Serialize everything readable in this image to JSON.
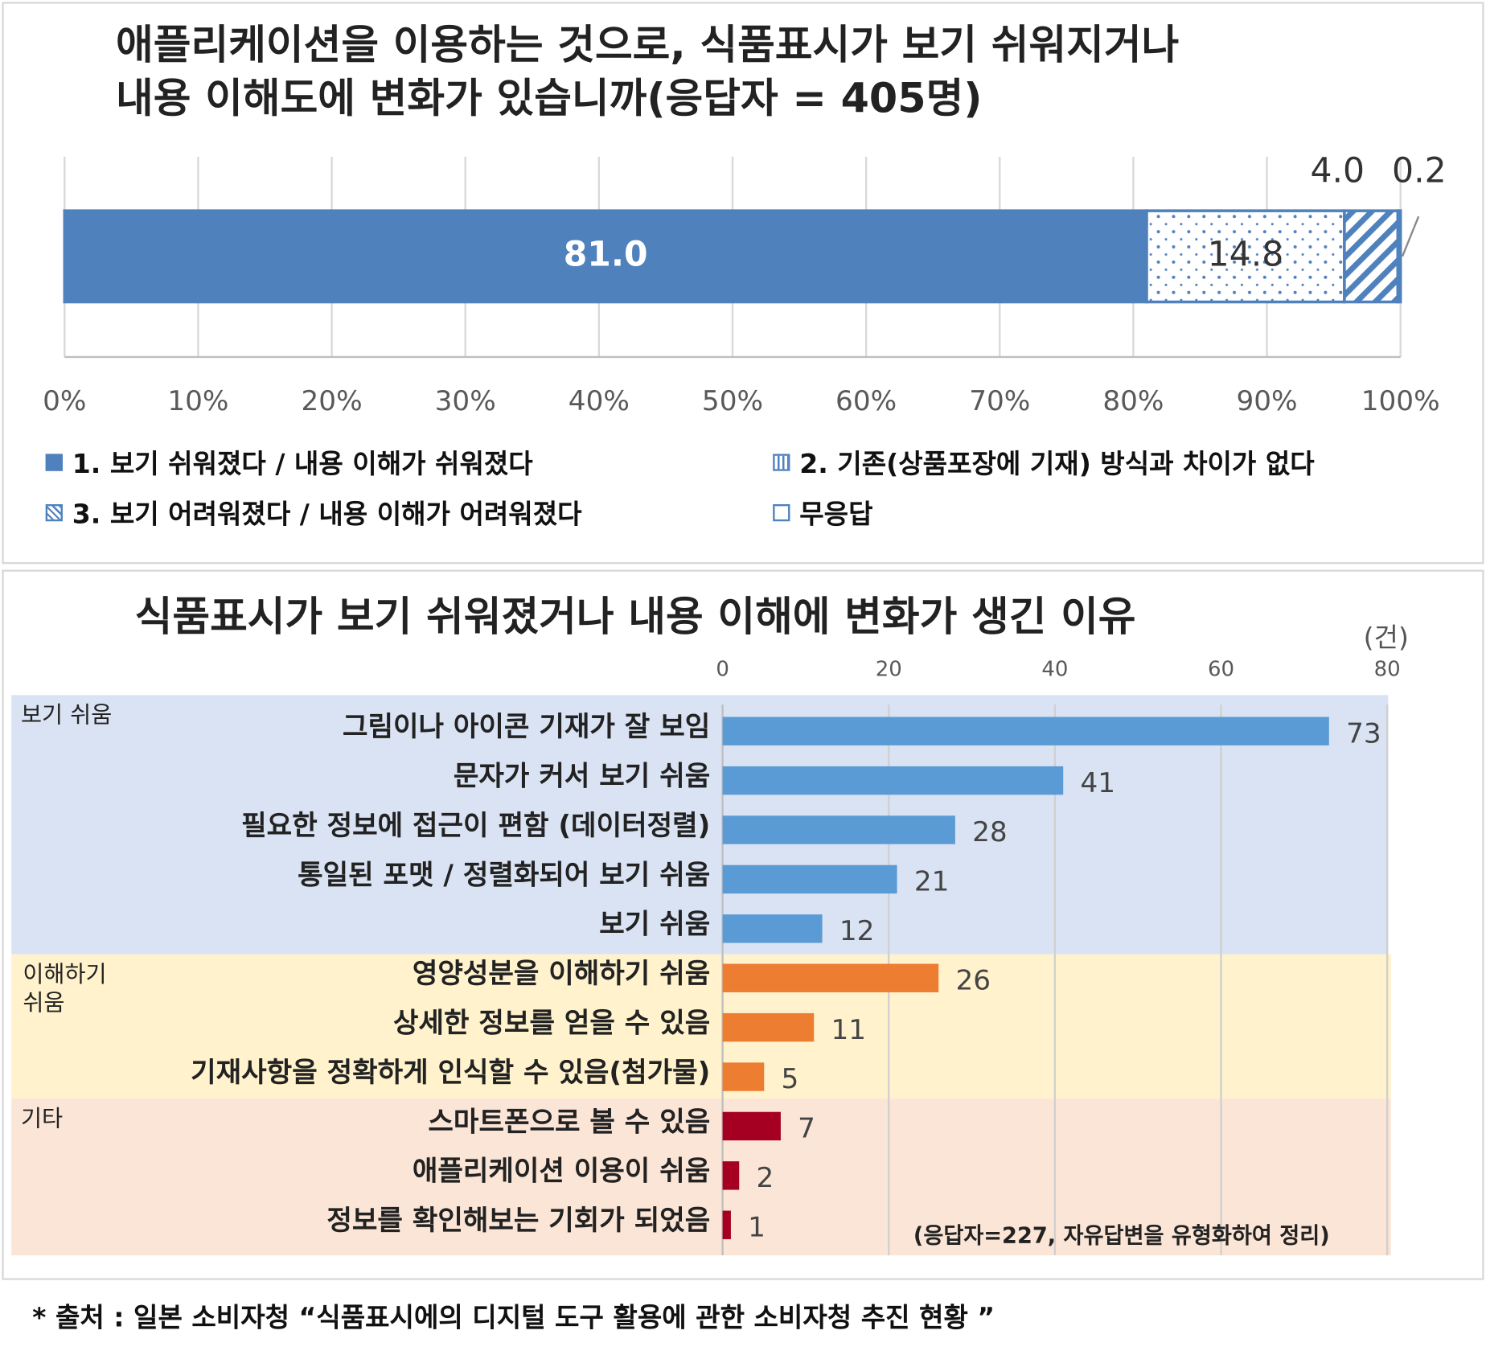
{
  "chart_data": [
    {
      "type": "bar",
      "orientation": "horizontal-stacked-100",
      "title": "애플리케이션을 이용하는 것으로, 식품표시가 보기 쉬워지거나 내용 이해도에 변화가 있습니까(응답자 = 405명)",
      "title_lines": [
        "애플리케이션을 이용하는 것으로, 식품표시가 보기 쉬워지거나",
        "내용 이해도에 변화가 있습니까(응답자 = 405명)"
      ],
      "series": [
        {
          "name": "1. 보기 쉬워졌다 / 내용 이해가 쉬워졌다",
          "value": 81.0,
          "label": "81.0",
          "color": "#4f81bd",
          "pattern": "solid"
        },
        {
          "name": "2. 기존(상품포장에 기재) 방식과 차이가 없다",
          "value": 14.8,
          "label": "14.8",
          "color": "#4f81bd",
          "pattern": "dots"
        },
        {
          "name": "3. 보기 어려워졌다 / 내용 이해가 어려워졌다",
          "value": 4.0,
          "label": "4.0",
          "color": "#4f81bd",
          "pattern": "hatch"
        },
        {
          "name": "무응답",
          "value": 0.2,
          "label": "0.2",
          "color": "#4f81bd",
          "pattern": "empty"
        }
      ],
      "xlim": [
        0,
        100
      ],
      "xticks": [
        "0%",
        "10%",
        "20%",
        "30%",
        "40%",
        "50%",
        "60%",
        "70%",
        "80%",
        "90%",
        "100%"
      ],
      "grid": true,
      "legend": "bottom"
    },
    {
      "type": "bar",
      "orientation": "horizontal",
      "title": "식품표시가 보기 쉬워졌거나 내용 이해에 변화가 생긴 이유",
      "unit": "(건)",
      "xlim": [
        0,
        80
      ],
      "xticks": [
        "0",
        "20",
        "40",
        "60",
        "80"
      ],
      "note": "(응답자=227, 자유답변을 유형화하여 정리)",
      "groups": [
        {
          "name": "보기 쉬움",
          "lines": [
            "보기 쉬움"
          ],
          "bg": "#dae3f3",
          "bar": "#5b9bd5",
          "items": [
            {
              "label": "그림이나 아이콘 기재가 잘 보임",
              "value": 73
            },
            {
              "label": "문자가 커서 보기 쉬움",
              "value": 41
            },
            {
              "label": "필요한 정보에 접근이 편함 (데이터정렬)",
              "value": 28
            },
            {
              "label": "통일된 포맷 / 정렬화되어 보기 쉬움",
              "value": 21
            },
            {
              "label": "보기 쉬움",
              "value": 12
            }
          ]
        },
        {
          "name": "이해하기 쉬움",
          "lines": [
            "이해하기",
            "쉬움"
          ],
          "bg": "#fff2cc",
          "bar": "#ed7d31",
          "items": [
            {
              "label": "영양성분을 이해하기 쉬움",
              "value": 26
            },
            {
              "label": "상세한 정보를 얻을 수 있음",
              "value": 11
            },
            {
              "label": "기재사항을 정확하게 인식할 수 있음(첨가물)",
              "value": 5
            }
          ]
        },
        {
          "name": "기타",
          "lines": [
            "기타"
          ],
          "bg": "#fbe5d6",
          "bar": "#a50021",
          "items": [
            {
              "label": "스마트폰으로 볼 수 있음",
              "value": 7
            },
            {
              "label": "애플리케이션 이용이 쉬움",
              "value": 2
            },
            {
              "label": "정보를 확인해보는 기회가 되었음",
              "value": 1
            }
          ]
        }
      ]
    }
  ],
  "source": "* 출처 : 일본 소비자청 “식품표시에의 디지털 도구 활용에 관한 소비자청 추진 현황 ”"
}
